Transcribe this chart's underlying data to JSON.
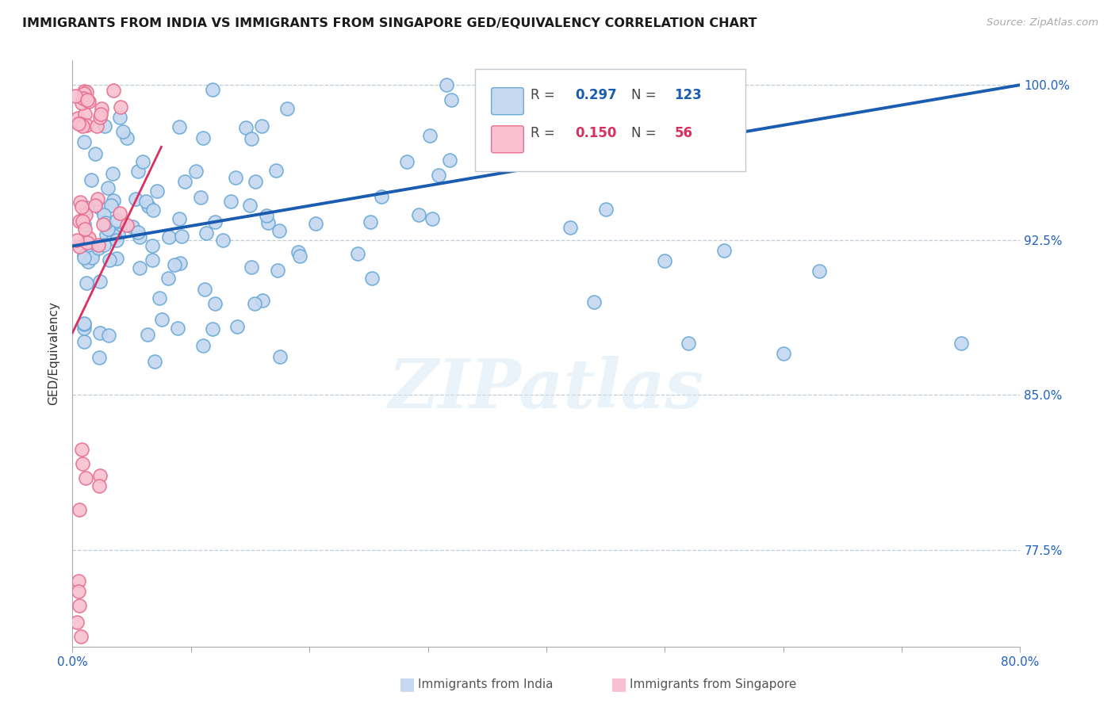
{
  "title": "IMMIGRANTS FROM INDIA VS IMMIGRANTS FROM SINGAPORE GED/EQUIVALENCY CORRELATION CHART",
  "source": "Source: ZipAtlas.com",
  "ylabel": "GED/Equivalency",
  "xlim": [
    0.0,
    0.8
  ],
  "ylim": [
    0.728,
    1.012
  ],
  "xtick_positions": [
    0.0,
    0.1,
    0.2,
    0.3,
    0.4,
    0.5,
    0.6,
    0.7,
    0.8
  ],
  "xticklabels": [
    "0.0%",
    "",
    "",
    "",
    "",
    "",
    "",
    "",
    "80.0%"
  ],
  "ytick_positions": [
    0.775,
    0.85,
    0.925,
    1.0
  ],
  "yticklabels": [
    "77.5%",
    "85.0%",
    "92.5%",
    "100.0%"
  ],
  "india_fill_color": "#c5d8f0",
  "india_edge_color": "#6aaad8",
  "singapore_fill_color": "#f8c0d0",
  "singapore_edge_color": "#e87090",
  "trend_india_color": "#1a5cb0",
  "trend_singapore_color": "#d83060",
  "R_india": 0.297,
  "N_india": 123,
  "R_singapore": 0.15,
  "N_singapore": 56,
  "legend_label_india": "Immigrants from India",
  "legend_label_singapore": "Immigrants from Singapore",
  "watermark": "ZIPatlas",
  "grid_color": "#c0ccd8",
  "axis_color": "#aaaaaa",
  "tick_color": "#2060c0",
  "title_fontsize": 11.5,
  "ylabel_fontsize": 11,
  "tick_fontsize": 11
}
